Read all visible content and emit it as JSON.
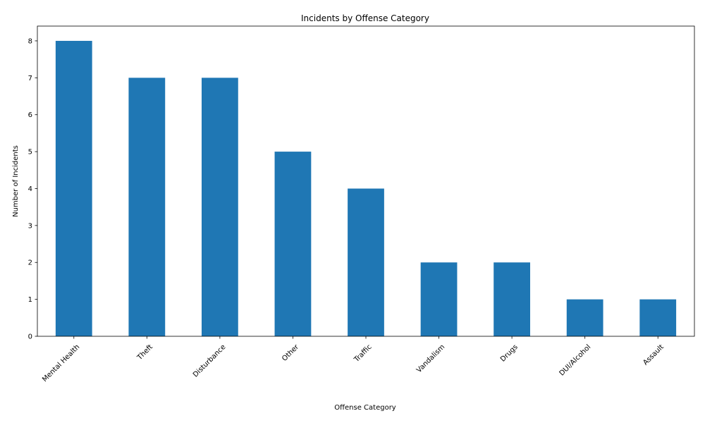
{
  "chart_data": {
    "type": "bar",
    "title": "Incidents by Offense Category",
    "xlabel": "Offense Category",
    "ylabel": "Number of Incidents",
    "categories": [
      "Mental Health",
      "Theft",
      "Disturbance",
      "Other",
      "Traffic",
      "Vandalism",
      "Drugs",
      "DUI/Alcohol",
      "Assault"
    ],
    "values": [
      8,
      7,
      7,
      5,
      4,
      2,
      2,
      1,
      1
    ],
    "ylim": [
      0,
      8.4
    ],
    "yticks": [
      0,
      1,
      2,
      3,
      4,
      5,
      6,
      7,
      8
    ],
    "bar_color": "#1f77b4",
    "grid": false,
    "legend": "none"
  }
}
